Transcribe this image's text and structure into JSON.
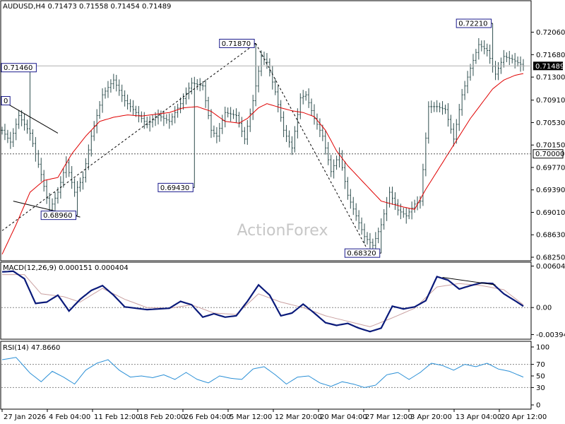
{
  "chart_data": [
    {
      "panel": "price",
      "type": "ohlc",
      "title": "AUDUSD,H4  0.71473 0.71558 0.71454 0.71489",
      "watermark": "ActionForex",
      "ylim": [
        0.6825,
        0.7239
      ],
      "y_ticks": [
        "0.72060",
        "0.71680",
        "0.71300",
        "0.70910",
        "0.70530",
        "0.70150",
        "0.69770",
        "0.69390",
        "0.69010",
        "0.68630",
        "0.68250"
      ],
      "x_ticks": [
        "27 Jan 2026",
        "4 Feb 04:00",
        "11 Feb 12:00",
        "18 Feb 20:00",
        "26 Feb 04:00",
        "5 Mar 12:00",
        "12 Mar 20:00",
        "20 Mar 04:00",
        "27 Mar 12:00",
        "3 Apr 20:00",
        "13 Apr 04:00",
        "20 Apr 12:00"
      ],
      "bar_count": 188,
      "current_price": "0.71489",
      "reference_level": "0.70000",
      "callouts": [
        "0.71460",
        "0.68960",
        "0.71870",
        "0.69430",
        "0.68320",
        "0.72210",
        "0"
      ],
      "close_path": [
        [
          0,
          0.704
        ],
        [
          3,
          0.702
        ],
        [
          6,
          0.7065
        ],
        [
          10,
          0.7035
        ],
        [
          14,
          0.6965
        ],
        [
          17,
          0.6905
        ],
        [
          20,
          0.6935
        ],
        [
          23,
          0.6985
        ],
        [
          26,
          0.6935
        ],
        [
          29,
          0.696
        ],
        [
          32,
          0.703
        ],
        [
          36,
          0.71
        ],
        [
          40,
          0.7125
        ],
        [
          44,
          0.709
        ],
        [
          48,
          0.707
        ],
        [
          52,
          0.705
        ],
        [
          56,
          0.7065
        ],
        [
          60,
          0.7055
        ],
        [
          64,
          0.7085
        ],
        [
          68,
          0.712
        ],
        [
          72,
          0.7115
        ],
        [
          75,
          0.704
        ],
        [
          77,
          0.703
        ],
        [
          80,
          0.707
        ],
        [
          84,
          0.7065
        ],
        [
          87,
          0.7025
        ],
        [
          90,
          0.709
        ],
        [
          93,
          0.7165
        ],
        [
          95,
          0.7155
        ],
        [
          98,
          0.7105
        ],
        [
          101,
          0.704
        ],
        [
          104,
          0.701
        ],
        [
          107,
          0.7095
        ],
        [
          109,
          0.71
        ],
        [
          112,
          0.706
        ],
        [
          115,
          0.703
        ],
        [
          118,
          0.697
        ],
        [
          121,
          0.7
        ],
        [
          124,
          0.693
        ],
        [
          127,
          0.6895
        ],
        [
          130,
          0.686
        ],
        [
          133,
          0.6845
        ],
        [
          136,
          0.688
        ],
        [
          139,
          0.6935
        ],
        [
          142,
          0.6905
        ],
        [
          145,
          0.6895
        ],
        [
          148,
          0.6915
        ],
        [
          150,
          0.692
        ],
        [
          153,
          0.708
        ],
        [
          156,
          0.708
        ],
        [
          159,
          0.7075
        ],
        [
          162,
          0.7025
        ],
        [
          165,
          0.71
        ],
        [
          168,
          0.7145
        ],
        [
          171,
          0.7185
        ],
        [
          174,
          0.7175
        ],
        [
          177,
          0.7135
        ],
        [
          180,
          0.7165
        ],
        [
          183,
          0.716
        ],
        [
          187,
          0.71489
        ]
      ],
      "bars_extremes": [
        {
          "bar": 10,
          "high": 0.7146
        },
        {
          "bar": 27,
          "low": 0.6896
        },
        {
          "bar": 69,
          "low": 0.6943
        },
        {
          "bar": 91,
          "high": 0.7187
        },
        {
          "bar": 136,
          "low": 0.6832
        },
        {
          "bar": 176,
          "high": 0.7221
        }
      ],
      "moving_average": [
        [
          0,
          0.683
        ],
        [
          5,
          0.688
        ],
        [
          10,
          0.6935
        ],
        [
          15,
          0.6955
        ],
        [
          20,
          0.696
        ],
        [
          25,
          0.7
        ],
        [
          30,
          0.703
        ],
        [
          35,
          0.7055
        ],
        [
          40,
          0.7062
        ],
        [
          45,
          0.7066
        ],
        [
          50,
          0.7064
        ],
        [
          55,
          0.7067
        ],
        [
          60,
          0.707
        ],
        [
          65,
          0.7078
        ],
        [
          70,
          0.708
        ],
        [
          75,
          0.7072
        ],
        [
          80,
          0.7055
        ],
        [
          85,
          0.7052
        ],
        [
          88,
          0.706
        ],
        [
          92,
          0.7078
        ],
        [
          95,
          0.7085
        ],
        [
          100,
          0.7078
        ],
        [
          104,
          0.7073
        ],
        [
          108,
          0.707
        ],
        [
          112,
          0.7063
        ],
        [
          116,
          0.704
        ],
        [
          120,
          0.7005
        ],
        [
          124,
          0.698
        ],
        [
          128,
          0.696
        ],
        [
          132,
          0.694
        ],
        [
          136,
          0.692
        ],
        [
          140,
          0.6915
        ],
        [
          144,
          0.691
        ],
        [
          148,
          0.6906
        ],
        [
          152,
          0.694
        ],
        [
          156,
          0.697
        ],
        [
          160,
          0.7
        ],
        [
          164,
          0.703
        ],
        [
          168,
          0.706
        ],
        [
          172,
          0.7085
        ],
        [
          176,
          0.711
        ],
        [
          180,
          0.7125
        ],
        [
          184,
          0.7133
        ],
        [
          187,
          0.7136
        ]
      ],
      "trendlines": [
        {
          "from": [
            0,
            0.709
          ],
          "to": [
            20,
            0.7035
          ]
        },
        {
          "from": [
            4,
            0.692
          ],
          "to": [
            28,
            0.6893
          ]
        },
        {
          "from": [
            0,
            0.687
          ],
          "to": [
            91,
            0.7187
          ]
        },
        {
          "from": [
            91,
            0.7187
          ],
          "to": [
            132,
            0.683
          ]
        }
      ]
    },
    {
      "panel": "macd",
      "type": "line",
      "title": "MACD(12,26,9) 0.000151 0.000404",
      "ylim": [
        -0.0042,
        0.0061
      ],
      "y_ticks": [
        "0.006048",
        "0.00",
        "-0.00394"
      ],
      "series": [
        {
          "role": "macd",
          "points": [
            [
              0,
              0.0052
            ],
            [
              4,
              0.0053
            ],
            [
              8,
              0.0042
            ],
            [
              12,
              0.0006
            ],
            [
              16,
              0.0008
            ],
            [
              20,
              0.0018
            ],
            [
              24,
              -0.0005
            ],
            [
              28,
              0.0012
            ],
            [
              32,
              0.0025
            ],
            [
              36,
              0.0032
            ],
            [
              40,
              0.0018
            ],
            [
              44,
              0.0001
            ],
            [
              48,
              -0.0001
            ],
            [
              52,
              -0.0003
            ],
            [
              56,
              -0.0002
            ],
            [
              60,
              -0.0001
            ],
            [
              64,
              0.0009
            ],
            [
              68,
              0.0004
            ],
            [
              72,
              -0.0014
            ],
            [
              76,
              -0.0009
            ],
            [
              80,
              -0.0014
            ],
            [
              84,
              -0.0012
            ],
            [
              88,
              0.0009
            ],
            [
              92,
              0.0033
            ],
            [
              96,
              0.0018
            ],
            [
              100,
              -0.0012
            ],
            [
              104,
              -0.0008
            ],
            [
              108,
              0.0005
            ],
            [
              112,
              -0.0008
            ],
            [
              116,
              -0.0022
            ],
            [
              120,
              -0.0026
            ],
            [
              124,
              -0.0023
            ],
            [
              128,
              -0.003
            ],
            [
              132,
              -0.0035
            ],
            [
              136,
              -0.003
            ],
            [
              140,
              0.0002
            ],
            [
              144,
              -0.0002
            ],
            [
              148,
              0.0001
            ],
            [
              152,
              0.001
            ],
            [
              156,
              0.0045
            ],
            [
              160,
              0.004
            ],
            [
              164,
              0.0027
            ],
            [
              168,
              0.0032
            ],
            [
              172,
              0.0036
            ],
            [
              176,
              0.0035
            ],
            [
              180,
              0.002
            ],
            [
              184,
              0.001
            ],
            [
              187,
              0.0002
            ]
          ]
        },
        {
          "role": "signal",
          "points": [
            [
              0,
              0.0048
            ],
            [
              8,
              0.0048
            ],
            [
              14,
              0.002
            ],
            [
              22,
              0.0016
            ],
            [
              28,
              0.0008
            ],
            [
              36,
              0.0028
            ],
            [
              44,
              0.0012
            ],
            [
              52,
              0.0
            ],
            [
              60,
              -0.0001
            ],
            [
              68,
              0.0004
            ],
            [
              76,
              -0.0008
            ],
            [
              84,
              -0.001
            ],
            [
              92,
              0.002
            ],
            [
              100,
              0.0008
            ],
            [
              108,
              0.0
            ],
            [
              116,
              -0.0012
            ],
            [
              124,
              -0.002
            ],
            [
              132,
              -0.0028
            ],
            [
              140,
              -0.0015
            ],
            [
              148,
              -0.0001
            ],
            [
              156,
              0.003
            ],
            [
              164,
              0.0035
            ],
            [
              172,
              0.0032
            ],
            [
              180,
              0.0026
            ],
            [
              187,
              0.0004
            ]
          ]
        }
      ],
      "divergence_line": {
        "from": [
          158,
          0.0044
        ],
        "to": [
          177,
          0.0033
        ]
      }
    },
    {
      "panel": "rsi",
      "type": "line",
      "title": "RSI(14) 47.8660",
      "ylim": [
        0,
        100
      ],
      "y_ticks": [
        "100",
        "70",
        "50",
        "30",
        "0"
      ],
      "levels": [
        70,
        30
      ],
      "series": [
        {
          "role": "rsi",
          "points": [
            [
              0,
              78
            ],
            [
              5,
              82
            ],
            [
              10,
              55
            ],
            [
              14,
              40
            ],
            [
              18,
              58
            ],
            [
              22,
              48
            ],
            [
              26,
              36
            ],
            [
              30,
              60
            ],
            [
              34,
              72
            ],
            [
              38,
              78
            ],
            [
              42,
              60
            ],
            [
              46,
              48
            ],
            [
              50,
              50
            ],
            [
              54,
              47
            ],
            [
              58,
              52
            ],
            [
              62,
              44
            ],
            [
              66,
              56
            ],
            [
              70,
              44
            ],
            [
              74,
              38
            ],
            [
              78,
              50
            ],
            [
              82,
              46
            ],
            [
              86,
              44
            ],
            [
              90,
              62
            ],
            [
              94,
              66
            ],
            [
              98,
              52
            ],
            [
              102,
              36
            ],
            [
              106,
              48
            ],
            [
              110,
              50
            ],
            [
              114,
              38
            ],
            [
              118,
              32
            ],
            [
              122,
              40
            ],
            [
              126,
              36
            ],
            [
              130,
              30
            ],
            [
              134,
              34
            ],
            [
              138,
              52
            ],
            [
              142,
              56
            ],
            [
              146,
              44
            ],
            [
              150,
              56
            ],
            [
              154,
              72
            ],
            [
              158,
              68
            ],
            [
              162,
              60
            ],
            [
              166,
              70
            ],
            [
              170,
              66
            ],
            [
              174,
              72
            ],
            [
              178,
              62
            ],
            [
              182,
              58
            ],
            [
              187,
              48
            ]
          ]
        }
      ]
    }
  ]
}
